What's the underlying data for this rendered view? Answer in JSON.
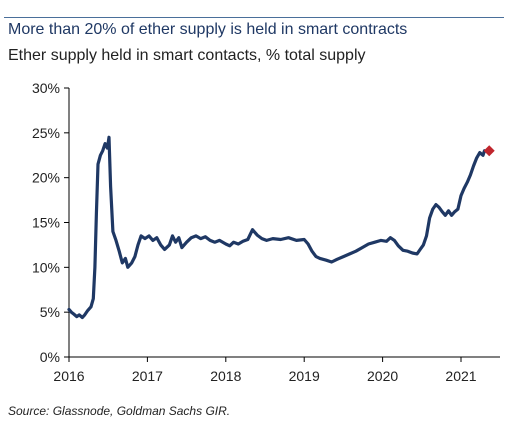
{
  "header": {
    "title": "More than 20% of ether supply is held in smart contracts",
    "subtitle": "Ether supply held in smart contacts, % total supply"
  },
  "footer": {
    "source": "Source: Glassnode, Goldman Sachs GIR."
  },
  "colors": {
    "line": "#1f3864",
    "marker": "#c0262d",
    "title": "#1f3864",
    "rule": "#4a6f9a",
    "axis": "#000000"
  },
  "chart_data": {
    "type": "line",
    "title": "More than 20% of ether supply is held in smart contracts",
    "subtitle": "Ether supply held in smart contacts, % total supply",
    "xlabel": "",
    "ylabel": "",
    "xlim": [
      2016,
      2021.5
    ],
    "ylim": [
      0,
      30
    ],
    "x_tick_labels": [
      "2016",
      "2017",
      "2018",
      "2019",
      "2020",
      "2021"
    ],
    "y_tick_labels": [
      "0%",
      "5%",
      "10%",
      "15%",
      "20%",
      "25%",
      "30%"
    ],
    "x_ticks": [
      2016,
      2017,
      2018,
      2019,
      2020,
      2021
    ],
    "y_ticks": [
      0,
      5,
      10,
      15,
      20,
      25,
      30
    ],
    "grid": false,
    "legend": "none",
    "series": [
      {
        "points": [
          [
            2016.0,
            5.3
          ],
          [
            2016.03,
            5.0
          ],
          [
            2016.06,
            4.8
          ],
          [
            2016.1,
            4.5
          ],
          [
            2016.13,
            4.7
          ],
          [
            2016.17,
            4.4
          ],
          [
            2016.2,
            4.7
          ],
          [
            2016.24,
            5.2
          ],
          [
            2016.28,
            5.6
          ],
          [
            2016.31,
            6.5
          ],
          [
            2016.33,
            10.0
          ],
          [
            2016.35,
            16.0
          ],
          [
            2016.37,
            21.5
          ],
          [
            2016.4,
            22.5
          ],
          [
            2016.43,
            23.0
          ],
          [
            2016.46,
            23.8
          ],
          [
            2016.49,
            23.3
          ],
          [
            2016.51,
            24.5
          ],
          [
            2016.53,
            19.0
          ],
          [
            2016.56,
            14.0
          ],
          [
            2016.6,
            13.0
          ],
          [
            2016.64,
            11.8
          ],
          [
            2016.68,
            10.5
          ],
          [
            2016.72,
            11.0
          ],
          [
            2016.75,
            10.0
          ],
          [
            2016.8,
            10.5
          ],
          [
            2016.84,
            11.2
          ],
          [
            2016.88,
            12.5
          ],
          [
            2016.92,
            13.5
          ],
          [
            2016.97,
            13.2
          ],
          [
            2017.02,
            13.5
          ],
          [
            2017.07,
            13.0
          ],
          [
            2017.12,
            13.3
          ],
          [
            2017.17,
            12.5
          ],
          [
            2017.22,
            12.0
          ],
          [
            2017.28,
            12.5
          ],
          [
            2017.32,
            13.5
          ],
          [
            2017.36,
            12.8
          ],
          [
            2017.4,
            13.3
          ],
          [
            2017.44,
            12.2
          ],
          [
            2017.5,
            12.8
          ],
          [
            2017.56,
            13.3
          ],
          [
            2017.62,
            13.5
          ],
          [
            2017.68,
            13.2
          ],
          [
            2017.74,
            13.4
          ],
          [
            2017.8,
            13.0
          ],
          [
            2017.86,
            12.8
          ],
          [
            2017.92,
            13.0
          ],
          [
            2018.0,
            12.6
          ],
          [
            2018.05,
            12.4
          ],
          [
            2018.1,
            12.8
          ],
          [
            2018.16,
            12.6
          ],
          [
            2018.22,
            12.9
          ],
          [
            2018.28,
            13.1
          ],
          [
            2018.34,
            14.2
          ],
          [
            2018.4,
            13.6
          ],
          [
            2018.46,
            13.2
          ],
          [
            2018.52,
            13.0
          ],
          [
            2018.6,
            13.2
          ],
          [
            2018.7,
            13.1
          ],
          [
            2018.8,
            13.3
          ],
          [
            2018.9,
            13.0
          ],
          [
            2019.0,
            13.1
          ],
          [
            2019.05,
            12.6
          ],
          [
            2019.1,
            11.8
          ],
          [
            2019.15,
            11.2
          ],
          [
            2019.2,
            11.0
          ],
          [
            2019.28,
            10.8
          ],
          [
            2019.35,
            10.6
          ],
          [
            2019.42,
            10.9
          ],
          [
            2019.5,
            11.2
          ],
          [
            2019.58,
            11.5
          ],
          [
            2019.66,
            11.8
          ],
          [
            2019.74,
            12.2
          ],
          [
            2019.82,
            12.6
          ],
          [
            2019.9,
            12.8
          ],
          [
            2019.98,
            13.0
          ],
          [
            2020.05,
            12.9
          ],
          [
            2020.1,
            13.3
          ],
          [
            2020.15,
            13.0
          ],
          [
            2020.2,
            12.4
          ],
          [
            2020.26,
            11.9
          ],
          [
            2020.32,
            11.8
          ],
          [
            2020.38,
            11.6
          ],
          [
            2020.44,
            11.5
          ],
          [
            2020.48,
            12.0
          ],
          [
            2020.52,
            12.5
          ],
          [
            2020.56,
            13.5
          ],
          [
            2020.6,
            15.5
          ],
          [
            2020.64,
            16.5
          ],
          [
            2020.68,
            17.0
          ],
          [
            2020.72,
            16.7
          ],
          [
            2020.76,
            16.2
          ],
          [
            2020.8,
            15.8
          ],
          [
            2020.84,
            16.3
          ],
          [
            2020.88,
            15.8
          ],
          [
            2020.92,
            16.2
          ],
          [
            2020.96,
            16.5
          ],
          [
            2021.0,
            18.0
          ],
          [
            2021.04,
            18.8
          ],
          [
            2021.08,
            19.5
          ],
          [
            2021.12,
            20.3
          ],
          [
            2021.16,
            21.3
          ],
          [
            2021.2,
            22.2
          ],
          [
            2021.24,
            22.8
          ],
          [
            2021.28,
            22.5
          ],
          [
            2021.3,
            23.0
          ]
        ]
      }
    ],
    "annotations": [
      {
        "type": "marker",
        "shape": "diamond",
        "x": 2021.36,
        "y": 23.0
      }
    ]
  }
}
